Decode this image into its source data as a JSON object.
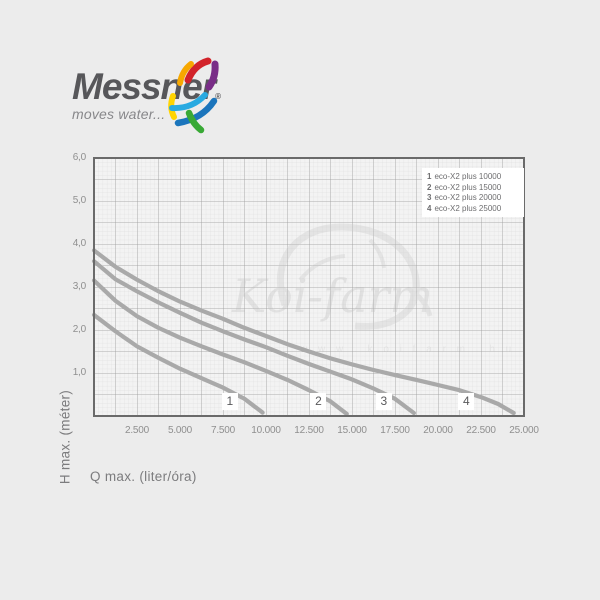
{
  "logo": {
    "brand": "Messner",
    "registered": "®",
    "tagline": "moves water..."
  },
  "swoosh_colors": {
    "red": "#d2232a",
    "orange": "#f7a800",
    "yellow": "#ffd400",
    "purple": "#792d87",
    "blue": "#1b75bc",
    "cyan": "#29aae1",
    "green": "#39a935"
  },
  "watermark": {
    "text": "Koi-farm",
    "subtext": "w w w . k o i f a r m . h u"
  },
  "chart_data": {
    "type": "line",
    "title": "",
    "xlabel": "Q max. (liter/óra)",
    "ylabel": "H max. (méter)",
    "xlim": [
      0,
      25000
    ],
    "ylim": [
      0,
      6
    ],
    "grid": {
      "minor_x": 250,
      "minor_y": 0.1,
      "major_x": 1250,
      "major_y": 0.5,
      "on": true
    },
    "x_ticks": [
      {
        "value": 2500,
        "label": "2.500"
      },
      {
        "value": 5000,
        "label": "5.000"
      },
      {
        "value": 7500,
        "label": "7.500"
      },
      {
        "value": 10000,
        "label": "10.000"
      },
      {
        "value": 12500,
        "label": "12.500"
      },
      {
        "value": 15000,
        "label": "15.000"
      },
      {
        "value": 17500,
        "label": "17.500"
      },
      {
        "value": 20000,
        "label": "20.000"
      },
      {
        "value": 22500,
        "label": "22.500"
      },
      {
        "value": 25000,
        "label": "25.000"
      }
    ],
    "y_ticks": [
      {
        "value": 1,
        "label": "1,0"
      },
      {
        "value": 2,
        "label": "2,0"
      },
      {
        "value": 3,
        "label": "3,0"
      },
      {
        "value": 4,
        "label": "4,0"
      },
      {
        "value": 5,
        "label": "5,0"
      },
      {
        "value": 6,
        "label": "6,0"
      }
    ],
    "legend": {
      "position": "top-right",
      "entries": [
        {
          "number": "1",
          "label": "eco-X2 plus 10000"
        },
        {
          "number": "2",
          "label": "eco-X2 plus 15000"
        },
        {
          "number": "3",
          "label": "eco-X2 plus 20000"
        },
        {
          "number": "4",
          "label": "eco-X2 plus 25000"
        }
      ]
    },
    "series": [
      {
        "name": "eco-X2 plus 10000",
        "curve_number": "1",
        "label_q": 7900,
        "points": [
          [
            0,
            2.35
          ],
          [
            1250,
            1.97
          ],
          [
            2500,
            1.62
          ],
          [
            3750,
            1.35
          ],
          [
            5000,
            1.1
          ],
          [
            6250,
            0.88
          ],
          [
            7500,
            0.66
          ],
          [
            8750,
            0.4
          ],
          [
            9800,
            0.08
          ]
        ]
      },
      {
        "name": "eco-X2 plus 15000",
        "curve_number": "2",
        "label_q": 13050,
        "points": [
          [
            0,
            3.15
          ],
          [
            1250,
            2.68
          ],
          [
            2500,
            2.32
          ],
          [
            3750,
            2.05
          ],
          [
            5000,
            1.82
          ],
          [
            6250,
            1.62
          ],
          [
            7500,
            1.43
          ],
          [
            8750,
            1.25
          ],
          [
            10000,
            1.05
          ],
          [
            11250,
            0.84
          ],
          [
            12500,
            0.6
          ],
          [
            13750,
            0.34
          ],
          [
            14700,
            0.05
          ]
        ]
      },
      {
        "name": "eco-X2 plus 20000",
        "curve_number": "3",
        "label_q": 16850,
        "points": [
          [
            0,
            3.6
          ],
          [
            1250,
            3.18
          ],
          [
            2500,
            2.9
          ],
          [
            3750,
            2.64
          ],
          [
            5000,
            2.4
          ],
          [
            6250,
            2.17
          ],
          [
            7500,
            1.97
          ],
          [
            8750,
            1.78
          ],
          [
            10000,
            1.6
          ],
          [
            11250,
            1.4
          ],
          [
            12500,
            1.21
          ],
          [
            13750,
            1.03
          ],
          [
            15000,
            0.85
          ],
          [
            16250,
            0.64
          ],
          [
            17500,
            0.4
          ],
          [
            18600,
            0.07
          ]
        ]
      },
      {
        "name": "eco-X2 plus 25000",
        "curve_number": "4",
        "label_q": 21650,
        "points": [
          [
            0,
            3.85
          ],
          [
            1250,
            3.47
          ],
          [
            2500,
            3.17
          ],
          [
            3750,
            2.9
          ],
          [
            5000,
            2.66
          ],
          [
            6250,
            2.45
          ],
          [
            7500,
            2.26
          ],
          [
            8750,
            2.05
          ],
          [
            10000,
            1.86
          ],
          [
            11250,
            1.67
          ],
          [
            12500,
            1.5
          ],
          [
            13750,
            1.34
          ],
          [
            15000,
            1.2
          ],
          [
            16250,
            1.07
          ],
          [
            17500,
            0.95
          ],
          [
            18750,
            0.84
          ],
          [
            20000,
            0.72
          ],
          [
            21250,
            0.6
          ],
          [
            22500,
            0.44
          ],
          [
            23500,
            0.28
          ],
          [
            24400,
            0.07
          ]
        ]
      }
    ],
    "style": {
      "curve_color": "#a9a9a9",
      "curve_width": 4.2,
      "plot_bg": "#f3f3f3",
      "minor_grid_color": "#dadada",
      "major_grid_color": "#9b9b9b",
      "border_color": "#6a6a6a"
    }
  }
}
